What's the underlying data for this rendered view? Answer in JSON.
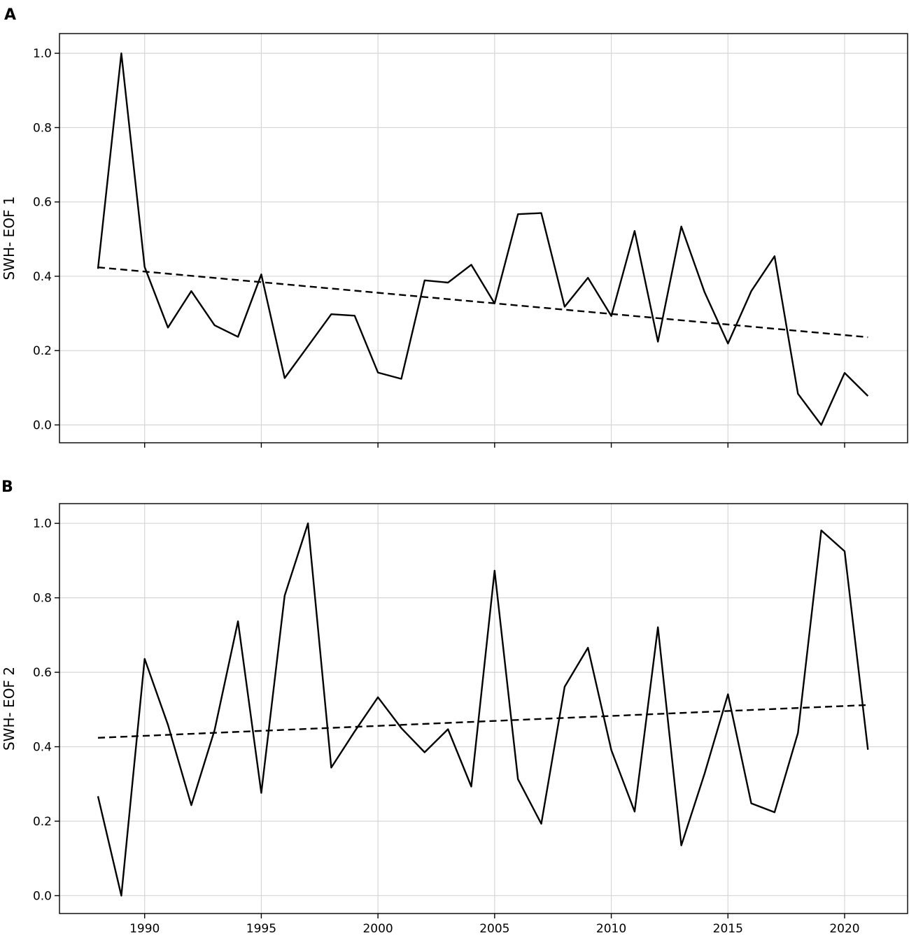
{
  "chart_data": [
    {
      "type": "line",
      "panel_label": "A",
      "title": "",
      "xlabel": "",
      "ylabel": "SWH- EOF 1",
      "xlim": [
        1986.35,
        2022.7
      ],
      "ylim": [
        -0.048,
        1.053
      ],
      "grid": true,
      "show_xtick_labels": false,
      "xticks": [
        1990,
        1995,
        2000,
        2005,
        2010,
        2015,
        2020
      ],
      "xtick_labels": [
        "1990",
        "1995",
        "2000",
        "2005",
        "2010",
        "2015",
        "2020"
      ],
      "yticks": [
        0.0,
        0.2,
        0.4,
        0.6,
        0.8,
        1.0
      ],
      "ytick_labels": [
        "0.0",
        "0.2",
        "0.4",
        "0.6",
        "0.8",
        "1.0"
      ],
      "series": [
        {
          "style": "solid",
          "x": [
            1988,
            1989,
            1990,
            1991,
            1992,
            1993,
            1994,
            1995,
            1996,
            1997,
            1998,
            1999,
            2000,
            2001,
            2002,
            2003,
            2004,
            2005,
            2006,
            2007,
            2008,
            2009,
            2010,
            2011,
            2012,
            2013,
            2014,
            2015,
            2016,
            2017,
            2018,
            2019,
            2020,
            2021
          ],
          "y": [
            0.42,
            1.0,
            0.425,
            0.262,
            0.36,
            0.268,
            0.237,
            0.405,
            0.126,
            0.212,
            0.298,
            0.294,
            0.141,
            0.124,
            0.389,
            0.383,
            0.431,
            0.327,
            0.567,
            0.57,
            0.318,
            0.396,
            0.293,
            0.522,
            0.224,
            0.534,
            0.357,
            0.219,
            0.36,
            0.454,
            0.084,
            0.0,
            0.14,
            0.078
          ]
        },
        {
          "style": "dashed",
          "x": [
            1988,
            2021
          ],
          "y": [
            0.424,
            0.236
          ]
        }
      ]
    },
    {
      "type": "line",
      "panel_label": "B",
      "title": "",
      "xlabel": "",
      "ylabel": "SWH- EOF 2",
      "xlim": [
        1986.35,
        2022.7
      ],
      "ylim": [
        -0.048,
        1.053
      ],
      "grid": true,
      "show_xtick_labels": true,
      "xticks": [
        1990,
        1995,
        2000,
        2005,
        2010,
        2015,
        2020
      ],
      "xtick_labels": [
        "1990",
        "1995",
        "2000",
        "2005",
        "2010",
        "2015",
        "2020"
      ],
      "yticks": [
        0.0,
        0.2,
        0.4,
        0.6,
        0.8,
        1.0
      ],
      "ytick_labels": [
        "0.0",
        "0.2",
        "0.4",
        "0.6",
        "0.8",
        "1.0"
      ],
      "series": [
        {
          "style": "solid",
          "x": [
            1988,
            1989,
            1990,
            1991,
            1992,
            1993,
            1994,
            1995,
            1996,
            1997,
            1998,
            1999,
            2000,
            2001,
            2002,
            2003,
            2004,
            2005,
            2006,
            2007,
            2008,
            2009,
            2010,
            2011,
            2012,
            2013,
            2014,
            2015,
            2016,
            2017,
            2018,
            2019,
            2020,
            2021
          ],
          "y": [
            0.267,
            0.0,
            0.636,
            0.459,
            0.243,
            0.445,
            0.737,
            0.276,
            0.806,
            1.0,
            0.344,
            0.441,
            0.533,
            0.45,
            0.385,
            0.447,
            0.293,
            0.873,
            0.313,
            0.193,
            0.561,
            0.666,
            0.391,
            0.226,
            0.721,
            0.135,
            0.328,
            0.541,
            0.248,
            0.224,
            0.437,
            0.981,
            0.925,
            0.392
          ]
        },
        {
          "style": "dashed",
          "x": [
            1988,
            2021
          ],
          "y": [
            0.424,
            0.512
          ]
        }
      ]
    }
  ]
}
